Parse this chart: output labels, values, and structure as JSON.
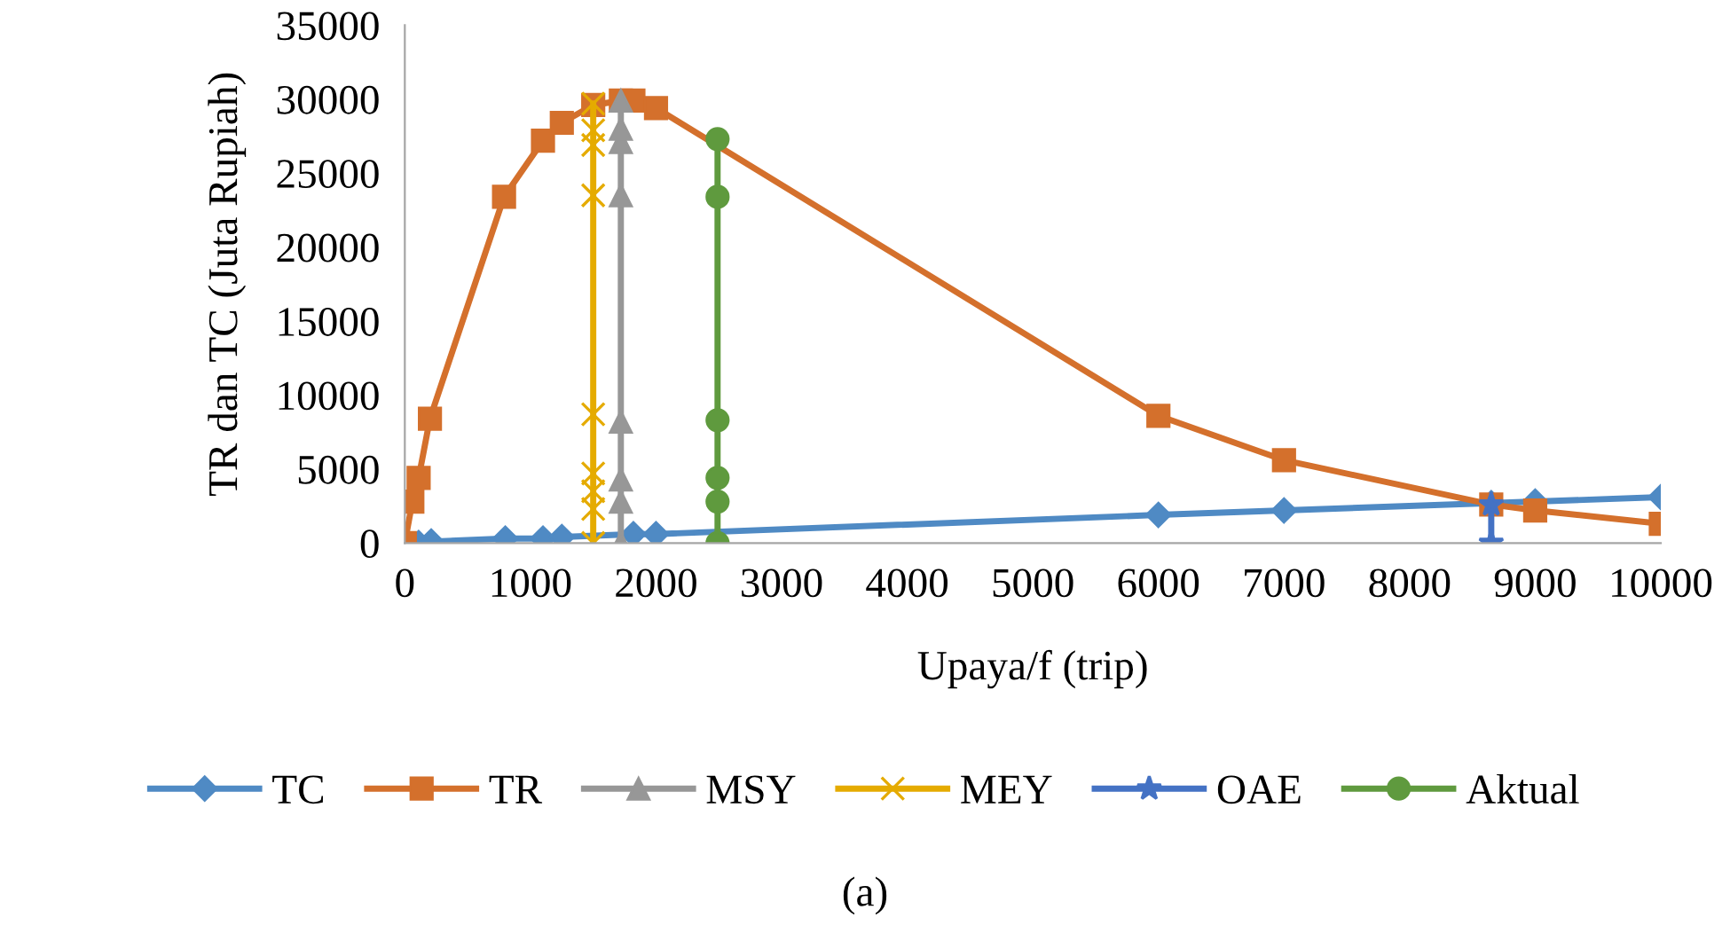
{
  "chart_data": {
    "type": "line",
    "xlabel": "Upaya/f (trip)",
    "ylabel": "TR dan TC (Juta Rupiah)",
    "xlim": [
      0,
      10000
    ],
    "xticks": [
      0,
      1000,
      2000,
      3000,
      4000,
      5000,
      6000,
      7000,
      8000,
      9000,
      10000
    ],
    "ylim": [
      0,
      35000
    ],
    "yticks": [
      0,
      5000,
      10000,
      15000,
      20000,
      25000,
      30000,
      35000
    ],
    "grid": false,
    "legend": "bottom",
    "line_style": "solid",
    "series": [
      {
        "name": "TC",
        "color": "#4f8ac4",
        "marker": "diamond",
        "x": [
          0,
          110,
          210,
          800,
          1100,
          1250,
          1820,
          2000,
          6000,
          7000,
          8650,
          9000,
          10000
        ],
        "values": [
          0,
          0,
          100,
          300,
          300,
          400,
          600,
          600,
          1900,
          2200,
          2700,
          2800,
          3100
        ]
      },
      {
        "name": "TR",
        "color": "#d4702c",
        "marker": "square",
        "x": [
          0,
          60,
          110,
          200,
          790,
          1100,
          1250,
          1500,
          1720,
          1820,
          2000,
          6000,
          7000,
          8650,
          9000,
          10000
        ],
        "values": [
          0,
          2800,
          4400,
          8400,
          23400,
          27200,
          28400,
          29600,
          29900,
          29900,
          29400,
          8600,
          5600,
          2600,
          2200,
          1300
        ]
      },
      {
        "name": "MSY",
        "color": "#979797",
        "marker": "triangle",
        "x": [
          1720,
          1720,
          1720,
          1720,
          1720,
          1720,
          1720,
          1720
        ],
        "values": [
          0,
          2800,
          4300,
          8200,
          23500,
          27100,
          28000,
          29900
        ]
      },
      {
        "name": "MEY",
        "color": "#e5ab00",
        "marker": "cross",
        "x": [
          1500,
          1500,
          1500,
          1500,
          1500,
          1500,
          1500,
          1500,
          1500
        ],
        "values": [
          0,
          2300,
          3500,
          4700,
          8700,
          23500,
          26900,
          27900,
          29700
        ]
      },
      {
        "name": "OAE",
        "color": "#4472c4",
        "marker": "star",
        "x": [
          8650,
          8650
        ],
        "values": [
          0,
          2600
        ]
      },
      {
        "name": "Aktual",
        "color": "#5f9a3e",
        "marker": "circle",
        "x": [
          2490,
          2490,
          2490,
          2490,
          2490,
          2490
        ],
        "values": [
          0,
          2800,
          4400,
          8300,
          23400,
          27300
        ]
      }
    ],
    "annotations": [
      "(a)"
    ]
  }
}
